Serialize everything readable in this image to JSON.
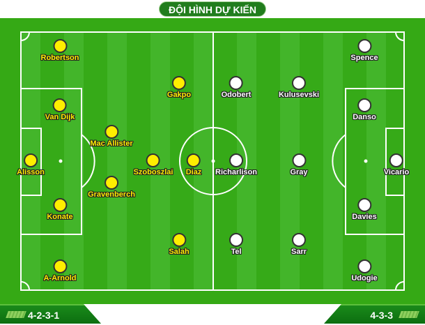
{
  "title": "ĐỘI HÌNH DỰ KIẾN",
  "colors": {
    "home": "#ffee00",
    "away": "#ffffff",
    "pitch": "#35a915",
    "title_bg": "#217d1d"
  },
  "home": {
    "formation": "4-2-3-1",
    "players": [
      "Robertson",
      "Van Dijk",
      "Alisson",
      "Konate",
      "A-Arnold",
      "Mac Allister",
      "Gravenberch",
      "Gakpo",
      "Szoboszlai",
      "Diaz",
      "Salah"
    ]
  },
  "away": {
    "formation": "4-3-3",
    "players": [
      "Spence",
      "Odobert",
      "Kulusevski",
      "Danso",
      "Richarlison",
      "Gray",
      "Vicario",
      "Davies",
      "Tel",
      "Sarr",
      "Udogie"
    ]
  }
}
